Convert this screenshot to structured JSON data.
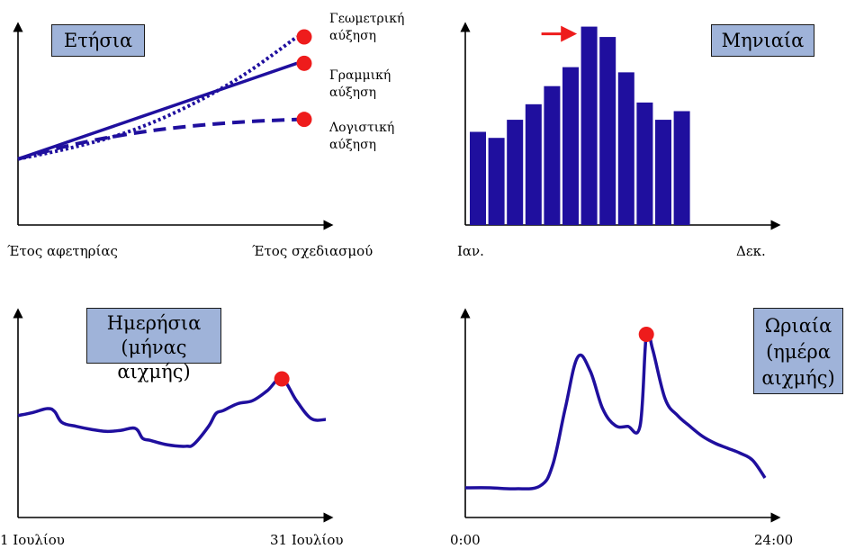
{
  "chart_data": [
    {
      "type": "line",
      "title": "Ετήσια",
      "x_start_label": "Έτος αφετηρίας",
      "x_end_label": "Έτος σχεδιασμού",
      "series": [
        {
          "name_line1": "Γεωμετρική",
          "name_line2": "αύξηση",
          "style": "dotted",
          "values": [
            1.0,
            1.18,
            1.42,
            1.78,
            2.25,
            2.85
          ]
        },
        {
          "name_line1": "Γραμμική",
          "name_line2": "αύξηση",
          "style": "solid",
          "values": [
            1.0,
            1.29,
            1.58,
            1.87,
            2.16,
            2.45
          ]
        },
        {
          "name_line1": "Λογιστική",
          "name_line2": "αύξηση",
          "style": "dashed",
          "values": [
            1.0,
            1.22,
            1.38,
            1.49,
            1.56,
            1.6
          ]
        }
      ],
      "x": [
        0,
        1,
        2,
        3,
        4,
        5
      ],
      "ylim": [
        0,
        3.0
      ],
      "line_color": "#1f0f9e",
      "marker_color": "#ee1c1c"
    },
    {
      "type": "bar",
      "title": "Μηνιαία",
      "x_start_label": "Ιαν.",
      "x_end_label": "Δεκ.",
      "categories": [
        "1",
        "2",
        "3",
        "4",
        "5",
        "6",
        "7",
        "8",
        "9",
        "10",
        "11",
        "12",
        "13"
      ],
      "values": [
        108,
        101,
        122,
        140,
        161,
        183,
        230,
        218,
        177,
        142,
        122,
        132,
        0
      ],
      "ylim": [
        0,
        240
      ],
      "bar_color": "#1f0f9e",
      "peak_index": 6,
      "arrow_color": "#ee1c1c"
    },
    {
      "type": "line",
      "title_line1": "Ημερήσια",
      "title_line2": "(μήνας αιχμής)",
      "x_start_label": "1 Ιουλίου",
      "x_end_label": "31 Ιουλίου",
      "x": [
        0,
        1,
        2,
        2.5,
        3,
        4,
        5,
        6,
        7,
        8,
        8.5,
        9,
        10,
        11,
        11.5,
        12,
        13,
        13.5,
        14,
        15,
        16,
        17,
        18,
        19,
        20,
        21
      ],
      "values": [
        103,
        106,
        110,
        107,
        96,
        92,
        89,
        87,
        88,
        90,
        80,
        78,
        74,
        72,
        72,
        74,
        92,
        105,
        108,
        115,
        118,
        128,
        140,
        118,
        100,
        99
      ],
      "ylim": [
        0,
        200
      ],
      "peak_index": 22,
      "line_color": "#1f0f9e",
      "marker_color": "#ee1c1c"
    },
    {
      "type": "line",
      "title_line1": "Ωριαία",
      "title_line2": "(ημέρα",
      "title_line3": "αιχμής)",
      "x_start_label": "0:00",
      "x_end_label": "24:00",
      "x": [
        0,
        2,
        4,
        6,
        7,
        8,
        9,
        10,
        11,
        12,
        13,
        14,
        14.5,
        15,
        16,
        17,
        18,
        19,
        20,
        21,
        22,
        23,
        24
      ],
      "values": [
        30,
        30,
        29,
        32,
        53,
        110,
        162,
        148,
        110,
        93,
        92,
        93,
        185,
        170,
        120,
        103,
        92,
        82,
        75,
        70,
        65,
        58,
        40
      ],
      "ylim": [
        0,
        200
      ],
      "peak_index": 12,
      "line_color": "#1f0f9e",
      "marker_color": "#ee1c1c"
    }
  ]
}
